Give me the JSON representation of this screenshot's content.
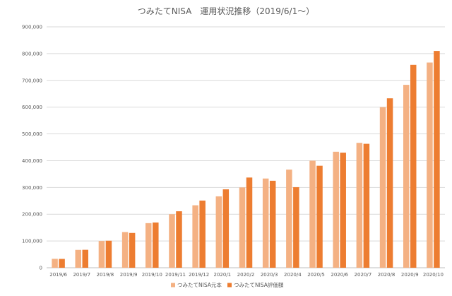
{
  "chart_data": {
    "type": "bar",
    "title": "つみたてNISA　運用状況推移（2019/6/1～）",
    "xlabel": "",
    "ylabel": "",
    "categories": [
      "2019/6",
      "2019/7",
      "2019/8",
      "2019/9",
      "2019/10",
      "2019/11",
      "2019/12",
      "2020/1",
      "2020/2",
      "2020/3",
      "2020/4",
      "2020/5",
      "2020/6",
      "2020/7",
      "2020/8",
      "2020/9",
      "2020/10"
    ],
    "series": [
      {
        "name": "つみたてNISA元本",
        "color": "#F4B183",
        "values": [
          33333,
          66666,
          99999,
          133332,
          166665,
          199998,
          233331,
          266664,
          299997,
          333330,
          366663,
          399996,
          433329,
          466662,
          599995,
          683328,
          766661
        ]
      },
      {
        "name": "つみたてNISA評価額",
        "color": "#ED7D31",
        "values": [
          33000,
          67000,
          101000,
          130000,
          169000,
          211000,
          251000,
          293000,
          337000,
          325000,
          301000,
          381000,
          430000,
          463000,
          633000,
          758000,
          810000
        ]
      }
    ],
    "ylim": [
      0,
      900000
    ],
    "yticks": [
      "0",
      "100,000",
      "200,000",
      "300,000",
      "400,000",
      "500,000",
      "600,000",
      "700,000",
      "800,000",
      "900,000"
    ],
    "grid": true,
    "legend_position": "bottom"
  }
}
